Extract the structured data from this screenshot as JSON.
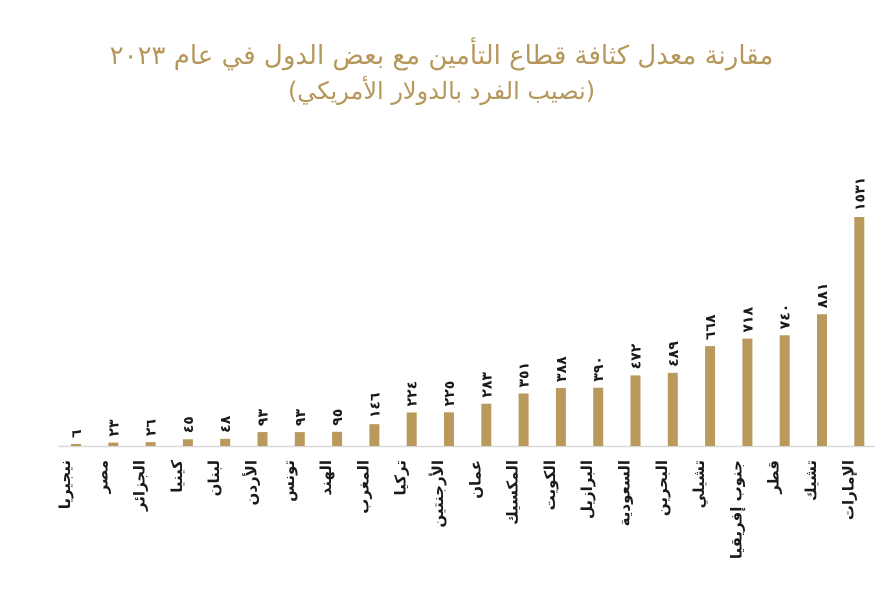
{
  "chart_data": {
    "type": "bar",
    "title": "مقارنة معدل كثافة قطاع التأمين مع بعض الدول في عام ٢٠٢٣",
    "subtitle": "(نصيب الفرد بالدولار الأمريكي)",
    "xlabel": "",
    "ylabel": "",
    "grid": false,
    "legend": "none",
    "bar_color": "#b99a5c",
    "axis_color": "#d9d9d9",
    "ylim": [
      0,
      1531
    ],
    "categories": [
      "نيجيريا",
      "مصر",
      "الجزائر",
      "كينيا",
      "لبنان",
      "الأردن",
      "تونس",
      "الهند",
      "المغرب",
      "تركيا",
      "الأرجنتين",
      "عمان",
      "المكسيك",
      "الكويت",
      "البرازيل",
      "السعودية",
      "البحرين",
      "تشيلي",
      "جنوب إفريقيا",
      "قطر",
      "تشيك",
      "الإمارات"
    ],
    "values": [
      6,
      23,
      26,
      45,
      48,
      93,
      93,
      95,
      146,
      224,
      225,
      283,
      351,
      388,
      390,
      472,
      489,
      668,
      718,
      740,
      881,
      1531
    ],
    "value_labels": [
      "٦",
      "٢٣",
      "٢٦",
      "٤٥",
      "٤٨",
      "٩٣",
      "٩٣",
      "٩٥",
      "١٤٦",
      "٢٢٤",
      "٢٢٥",
      "٢٨٣",
      "٣٥١",
      "٣٨٨",
      "٣٩٠",
      "٤٧٢",
      "٤٨٩",
      "٦٦٨",
      "٧١٨",
      "٧٤٠",
      "٨٨١",
      "١٥٣١"
    ]
  }
}
